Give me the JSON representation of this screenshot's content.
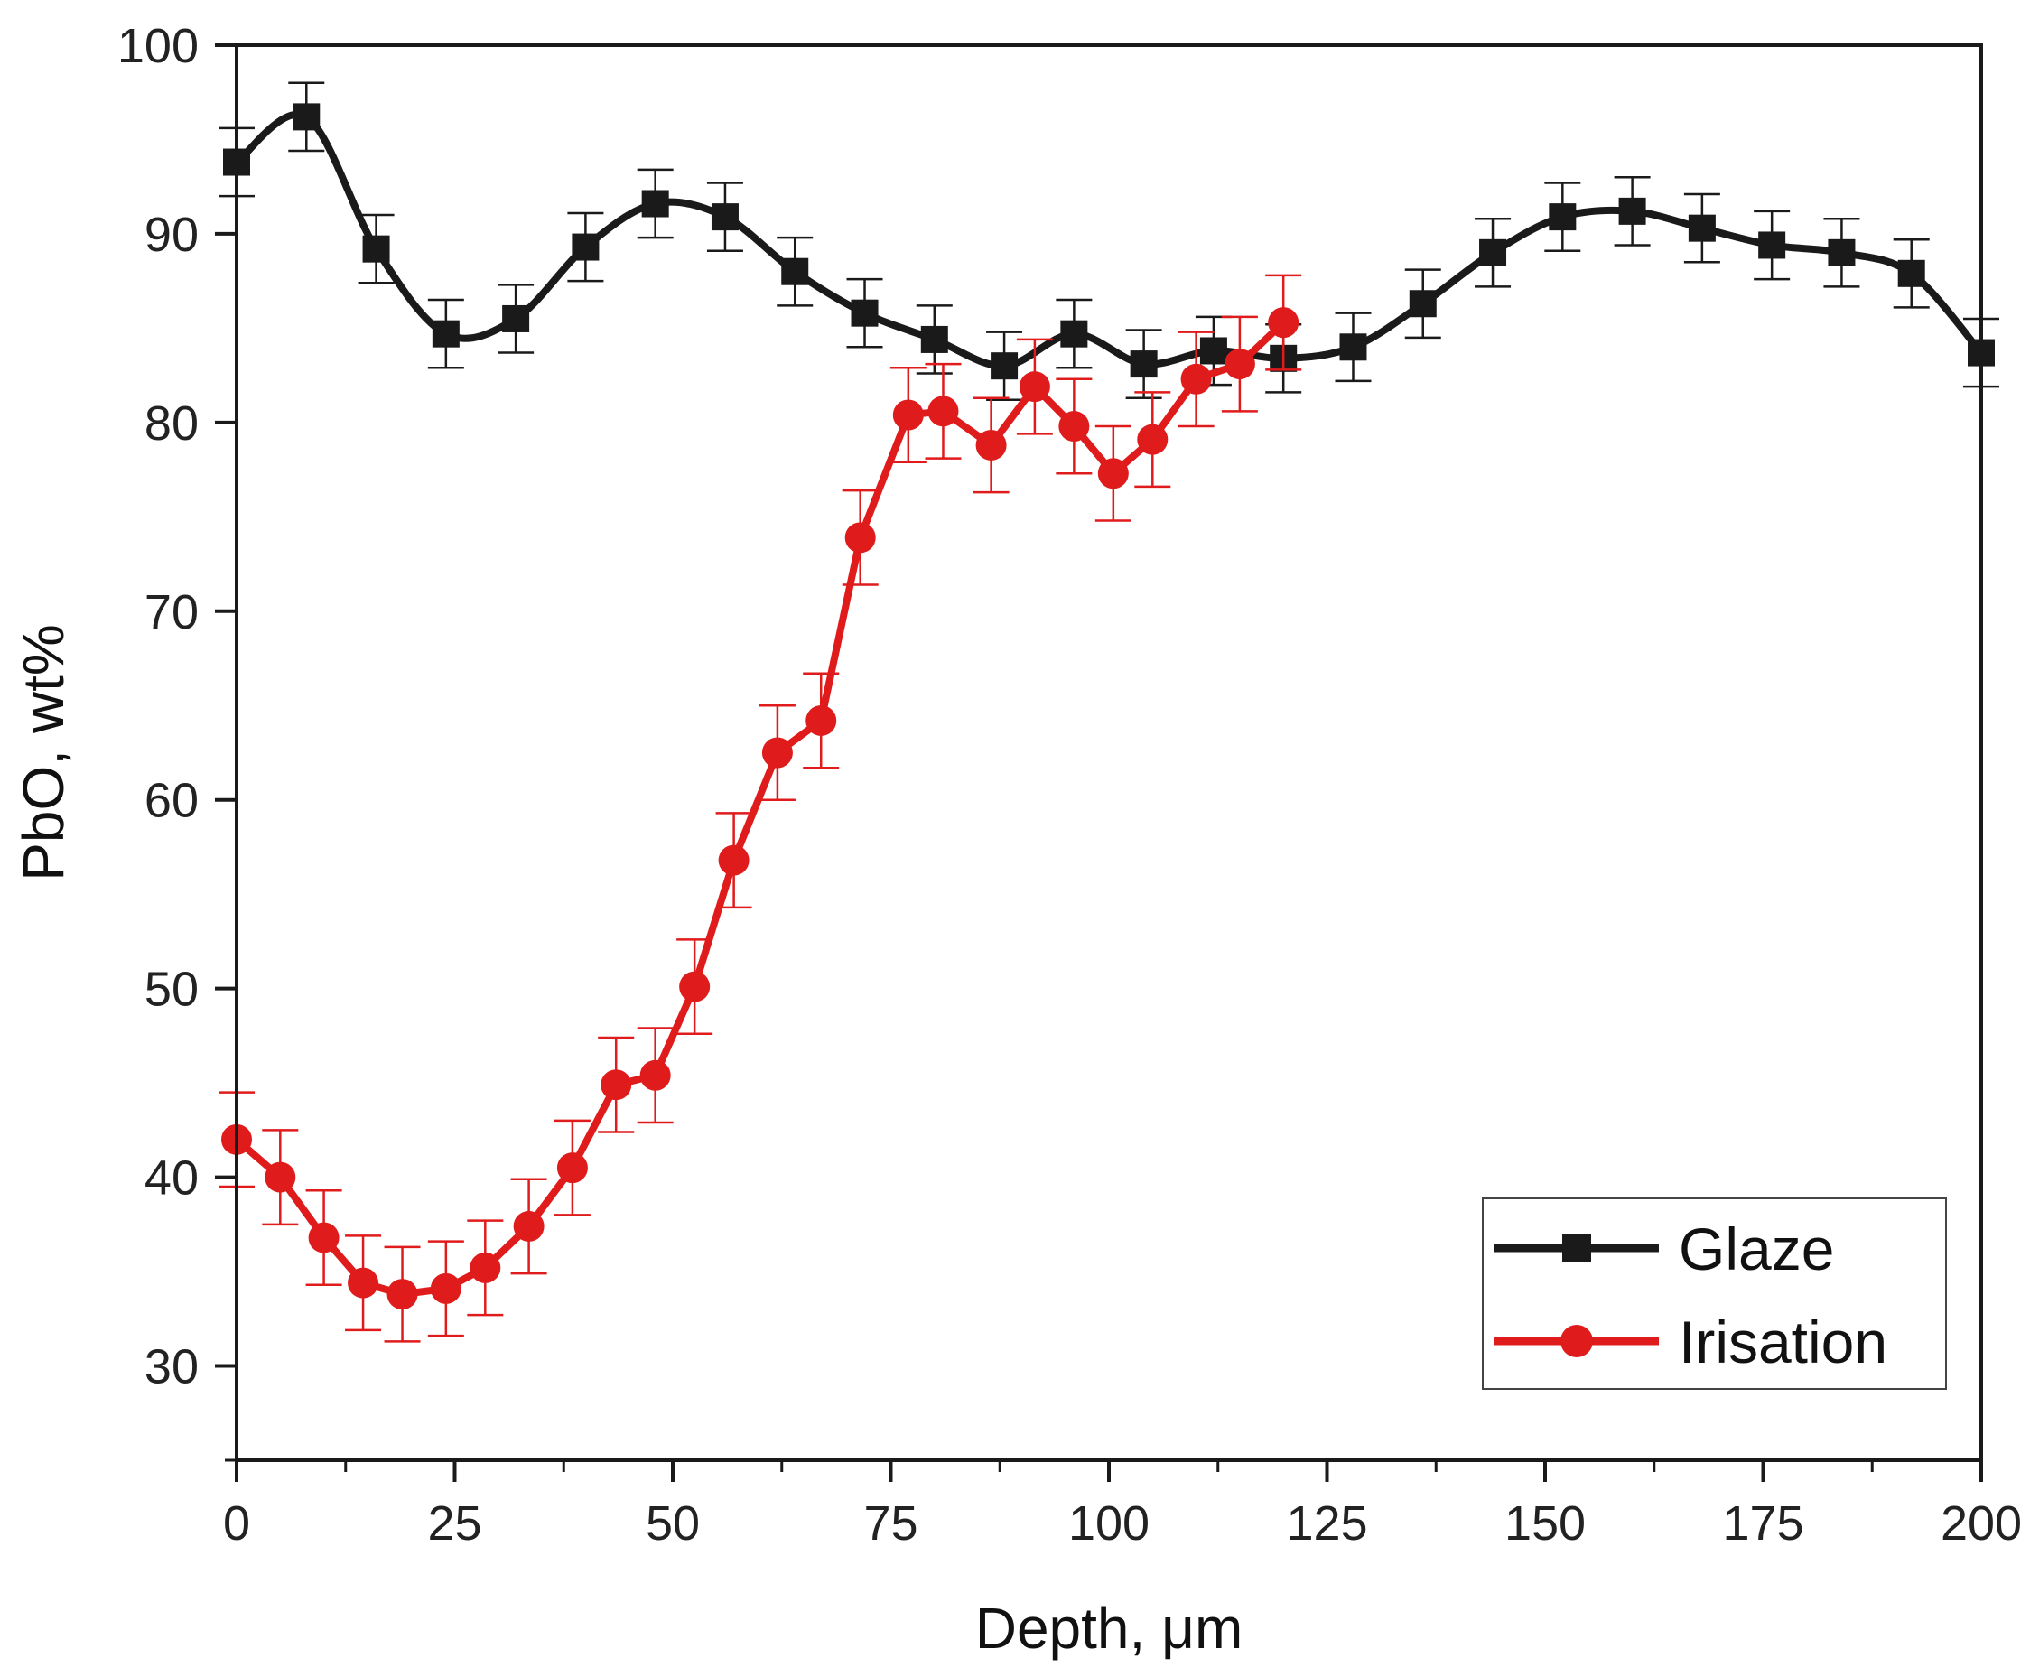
{
  "chart_data": {
    "type": "line",
    "title": "",
    "xlabel": "Depth, μm",
    "ylabel": "PbO, wt%",
    "xlim": [
      0,
      200
    ],
    "ylim": [
      25,
      100
    ],
    "xticks": [
      0,
      25,
      50,
      75,
      100,
      125,
      150,
      175,
      200
    ],
    "yticks": [
      30,
      40,
      50,
      60,
      70,
      80,
      90,
      100
    ],
    "grid": false,
    "legend_position": "bottom-right",
    "series": [
      {
        "name": "Glaze",
        "color": "#1a1a1a",
        "marker": "square",
        "error": 1.8,
        "x": [
          0,
          8,
          16,
          24,
          32,
          40,
          48,
          56,
          64,
          72,
          80,
          88,
          96,
          104,
          112,
          120,
          128,
          136,
          144,
          152,
          160,
          168,
          176,
          184,
          192,
          200
        ],
        "y": [
          93.8,
          96.2,
          89.2,
          84.7,
          85.5,
          89.3,
          91.6,
          90.9,
          88.0,
          85.8,
          84.4,
          83.0,
          84.7,
          83.1,
          83.8,
          83.4,
          84.0,
          86.3,
          89.0,
          90.9,
          91.2,
          90.3,
          89.4,
          89.0,
          87.9,
          83.7
        ]
      },
      {
        "name": "Irisation",
        "color": "#e01b1b",
        "marker": "circle",
        "error": 2.5,
        "x": [
          0,
          5,
          10,
          14.5,
          19,
          24,
          28.5,
          33.5,
          38.5,
          43.5,
          48,
          52.5,
          57,
          62,
          67,
          71.5,
          77,
          81,
          86.5,
          91.5,
          96,
          100.5,
          105,
          110,
          115,
          120
        ],
        "y": [
          42.0,
          40.0,
          36.8,
          34.4,
          33.8,
          34.1,
          35.2,
          37.4,
          40.5,
          44.9,
          45.4,
          50.1,
          56.8,
          62.5,
          64.2,
          73.9,
          80.4,
          80.6,
          78.8,
          81.9,
          79.8,
          77.3,
          79.1,
          82.3,
          83.1,
          85.3
        ]
      }
    ]
  }
}
